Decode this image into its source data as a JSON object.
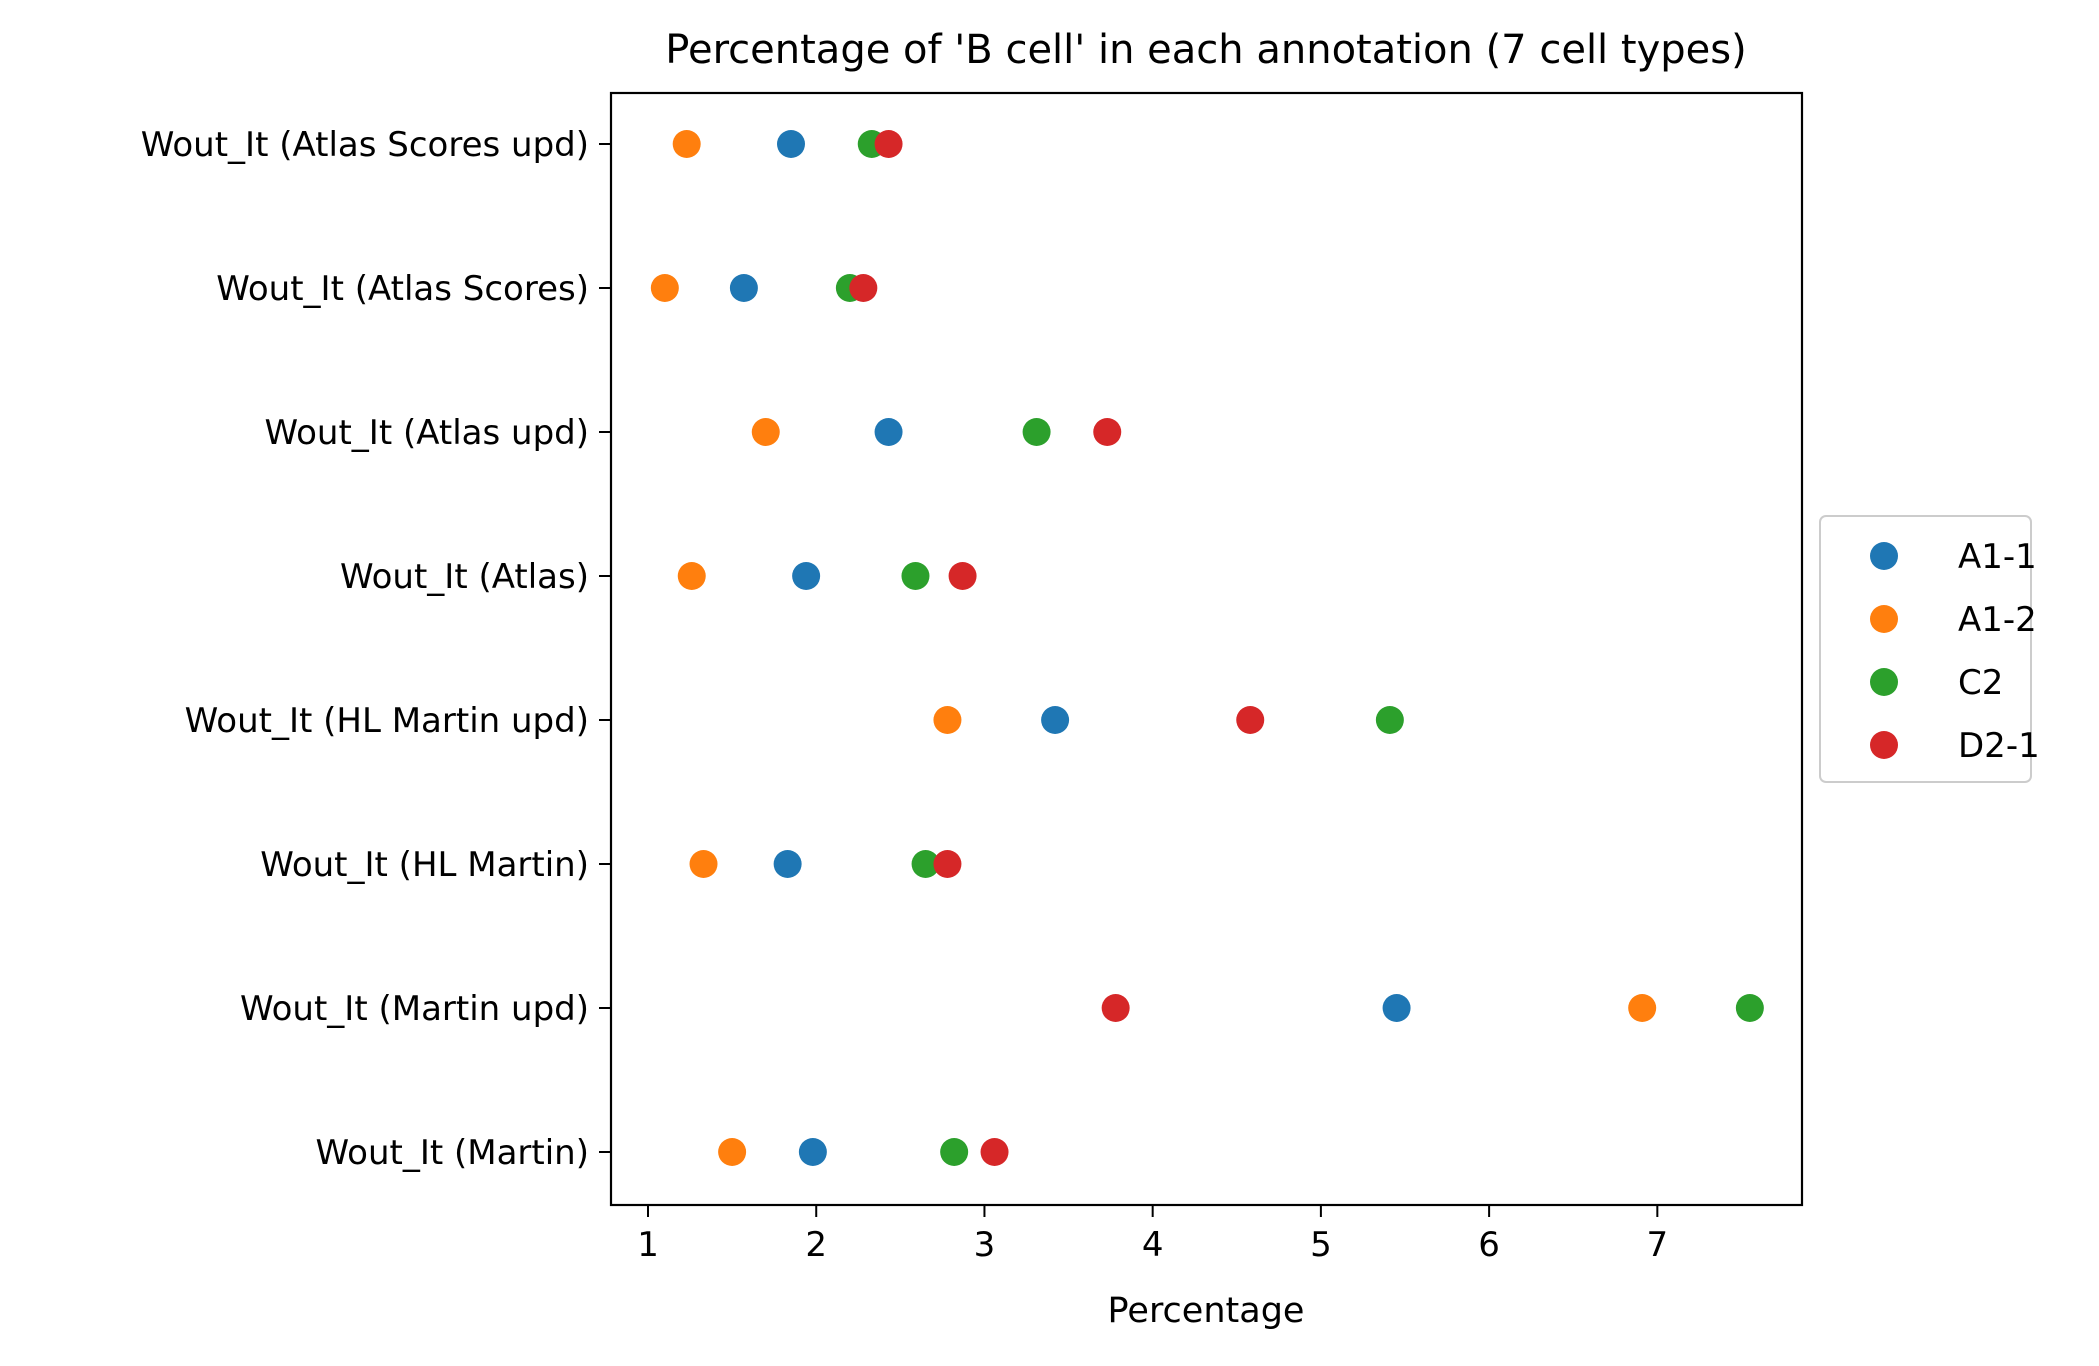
{
  "chart_data": {
    "type": "scatter",
    "title": "Percentage of 'B cell' in each annotation (7 cell types)",
    "xlabel": "Percentage",
    "ylabel": "",
    "xlim": [
      0.78,
      7.86
    ],
    "xticks": [
      1,
      2,
      3,
      4,
      5,
      6,
      7
    ],
    "categories": [
      "Wout_It (Atlas Scores upd)",
      "Wout_It (Atlas Scores)",
      "Wout_It (Atlas upd)",
      "Wout_It (Atlas)",
      "Wout_It (HL Martin upd)",
      "Wout_It (HL Martin)",
      "Wout_It (Martin upd)",
      "Wout_It (Martin)"
    ],
    "grid": false,
    "legend_position": "center-right, outside plot",
    "series": [
      {
        "name": "A1-1",
        "color": "#1f77b4",
        "values": [
          1.85,
          1.57,
          2.43,
          1.94,
          3.42,
          1.83,
          5.45,
          1.98
        ]
      },
      {
        "name": "A1-2",
        "color": "#ff7f0e",
        "values": [
          1.23,
          1.1,
          1.7,
          1.26,
          2.78,
          1.33,
          6.91,
          1.5
        ]
      },
      {
        "name": "C2",
        "color": "#2ca02c",
        "values": [
          2.33,
          2.2,
          3.31,
          2.59,
          5.41,
          2.65,
          7.55,
          2.82
        ]
      },
      {
        "name": "D2-1",
        "color": "#d62728",
        "values": [
          2.43,
          2.28,
          3.73,
          2.87,
          4.58,
          2.78,
          3.78,
          3.06
        ]
      }
    ]
  }
}
